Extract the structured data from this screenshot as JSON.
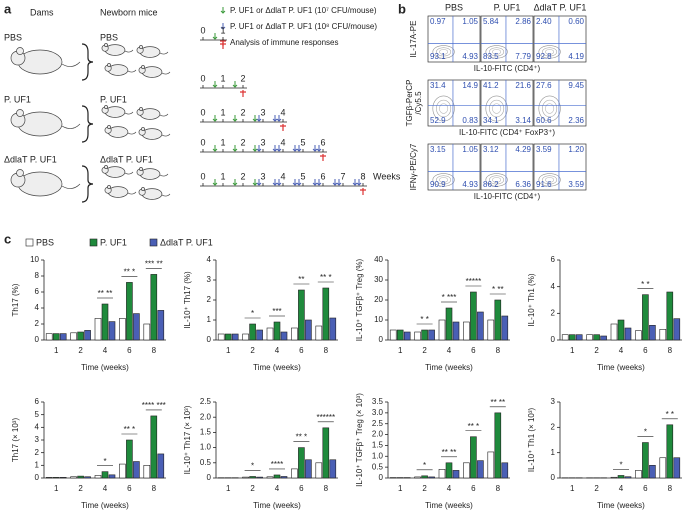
{
  "panel_a": {
    "letter": "a",
    "dams_heading": "Dams",
    "mice_heading": "Newborn mice",
    "groups": [
      "PBS",
      "P. UF1",
      "ΔdlaT P. UF1"
    ],
    "offspring": [
      "PBS",
      "P. UF1",
      "ΔdlaT P. UF1"
    ],
    "legend": [
      "P. UF1 or ΔdlaT P. UF1 (10⁷ CFU/mouse)",
      "P. UF1 or ΔdlaT P. UF1 (10⁸ CFU/mouse)",
      "Analysis of immune responses"
    ],
    "timelines": [
      [
        "0",
        "1"
      ],
      [
        "0",
        "1",
        "2"
      ],
      [
        "0",
        "1",
        "2",
        "3",
        "4"
      ],
      [
        "0",
        "1",
        "2",
        "3",
        "4",
        "5",
        "6"
      ],
      [
        "0",
        "1",
        "2",
        "3",
        "4",
        "5",
        "6",
        "7",
        "8"
      ]
    ],
    "unit": "Weeks"
  },
  "panel_b": {
    "letter": "b",
    "columns": [
      "PBS",
      "P. UF1",
      "ΔdlaT P. UF1"
    ],
    "rows": [
      {
        "y_label": [
          "IL-17A-PE"
        ],
        "x_label": "IL-10-FITC (CD4⁺)",
        "quadrants": [
          [
            "0.97",
            "1.05",
            "93.1",
            "4.93"
          ],
          [
            "5.84",
            "2.86",
            "83.5",
            "7.79"
          ],
          [
            "2.40",
            "0.60",
            "92.8",
            "4.19"
          ]
        ]
      },
      {
        "y_label": [
          "TGFβ-PerCP",
          "/Cy5.5"
        ],
        "x_label": "IL-10-FITC (CD4⁺ FoxP3⁺)",
        "quadrants": [
          [
            "31.4",
            "14.9",
            "52.9",
            "0.83"
          ],
          [
            "41.2",
            "21.6",
            "34.1",
            "3.14"
          ],
          [
            "27.6",
            "9.45",
            "60.6",
            "2.36"
          ]
        ]
      },
      {
        "y_label": [
          "IFNγ-PE/Cy7"
        ],
        "x_label": "IL-10-FITC (CD4⁺)",
        "quadrants": [
          [
            "3.15",
            "1.05",
            "90.9",
            "4.93"
          ],
          [
            "3.12",
            "4.29",
            "86.2",
            "6.36"
          ],
          [
            "3.59",
            "1.20",
            "91.6",
            "3.59"
          ]
        ]
      }
    ]
  },
  "panel_c": {
    "letter": "c"
  },
  "chart_data": [
    {
      "type": "bar",
      "y_label": "Th17 (%)",
      "x_label": "Time (weeks)",
      "categories": [
        "1",
        "2",
        "4",
        "6",
        "8"
      ],
      "ylim": [
        0,
        10
      ],
      "yticks": [
        0,
        2,
        4,
        6,
        8,
        10
      ],
      "series": [
        {
          "name": "PBS",
          "color": "#ffffff",
          "values": [
            0.8,
            0.9,
            2.7,
            2.7,
            2.0
          ]
        },
        {
          "name": "P. UF1",
          "color": "#1f8a3c",
          "values": [
            0.8,
            1.0,
            4.5,
            7.2,
            8.2
          ]
        },
        {
          "name": "ΔdlaT P. UF1",
          "color": "#4a5fb5",
          "values": [
            0.8,
            1.2,
            2.3,
            3.3,
            3.7
          ]
        }
      ],
      "stars": [
        null,
        null,
        "** **",
        "** *",
        "*** **"
      ]
    },
    {
      "type": "bar",
      "y_label": "IL-10⁺ Th17 (%)",
      "x_label": "Time (weeks)",
      "categories": [
        "1",
        "2",
        "4",
        "6",
        "8"
      ],
      "ylim": [
        0,
        4
      ],
      "yticks": [
        0,
        1,
        2,
        3,
        4
      ],
      "series": [
        {
          "color": "#ffffff",
          "values": [
            0.3,
            0.3,
            0.6,
            0.6,
            0.7
          ]
        },
        {
          "color": "#1f8a3c",
          "values": [
            0.3,
            0.8,
            0.9,
            2.5,
            2.6
          ]
        },
        {
          "color": "#4a5fb5",
          "values": [
            0.3,
            0.5,
            0.4,
            1.0,
            1.1
          ]
        }
      ],
      "stars": [
        null,
        "*",
        "***",
        "**",
        "** *"
      ]
    },
    {
      "type": "bar",
      "y_label": "IL-10⁺ TGFβ⁺ Treg (%)",
      "x_label": "Time (weeks)",
      "categories": [
        "1",
        "2",
        "4",
        "6",
        "8"
      ],
      "ylim": [
        0,
        40
      ],
      "yticks": [
        0,
        10,
        20,
        30,
        40
      ],
      "series": [
        {
          "color": "#ffffff",
          "values": [
            5,
            4,
            10,
            9,
            10
          ]
        },
        {
          "color": "#1f8a3c",
          "values": [
            5,
            5,
            16,
            24,
            20
          ]
        },
        {
          "color": "#4a5fb5",
          "values": [
            4,
            5,
            9,
            14,
            12
          ]
        }
      ],
      "stars": [
        null,
        "* *",
        "* ***",
        "*****",
        "* **"
      ]
    },
    {
      "type": "bar",
      "y_label": "IL-10⁺ Th1 (%)",
      "x_label": "Time (weeks)",
      "categories": [
        "1",
        "2",
        "4",
        "6",
        "8"
      ],
      "ylim": [
        0,
        6
      ],
      "yticks": [
        0,
        2,
        4,
        6
      ],
      "series": [
        {
          "color": "#ffffff",
          "values": [
            0.4,
            0.4,
            1.2,
            0.7,
            0.8
          ]
        },
        {
          "color": "#1f8a3c",
          "values": [
            0.4,
            0.4,
            1.5,
            3.4,
            3.6
          ]
        },
        {
          "color": "#4a5fb5",
          "values": [
            0.4,
            0.3,
            0.9,
            1.1,
            1.6
          ]
        }
      ],
      "stars": [
        null,
        null,
        null,
        "* *",
        null
      ]
    },
    {
      "type": "bar",
      "y_label": "Th17 (× 10³)",
      "x_label": "Time (weeks)",
      "categories": [
        "1",
        "2",
        "4",
        "6",
        "8"
      ],
      "ylim": [
        0,
        6
      ],
      "yticks": [
        0,
        1,
        2,
        3,
        4,
        5,
        6
      ],
      "series": [
        {
          "color": "#ffffff",
          "values": [
            0.05,
            0.1,
            0.2,
            1.1,
            1.0
          ]
        },
        {
          "color": "#1f8a3c",
          "values": [
            0.05,
            0.15,
            0.5,
            3.0,
            4.9
          ]
        },
        {
          "color": "#4a5fb5",
          "values": [
            0.05,
            0.1,
            0.25,
            1.3,
            1.9
          ]
        }
      ],
      "stars": [
        null,
        null,
        "*",
        "** *",
        "**** ***"
      ]
    },
    {
      "type": "bar",
      "y_label": "IL-10⁺ Th17 (× 10³)",
      "x_label": "Time (weeks)",
      "categories": [
        "1",
        "2",
        "4",
        "6",
        "8"
      ],
      "ylim": [
        0,
        2.5
      ],
      "yticks": [
        0,
        0.5,
        {
          "value": 1,
          "label": "1.0"
        },
        1.5,
        {
          "value": 2,
          "label": "2.0"
        },
        2.5
      ],
      "series": [
        {
          "color": "#ffffff",
          "values": [
            0.01,
            0.03,
            0.04,
            0.3,
            0.5
          ]
        },
        {
          "color": "#1f8a3c",
          "values": [
            0.01,
            0.05,
            0.1,
            1.0,
            1.65
          ]
        },
        {
          "color": "#4a5fb5",
          "values": [
            0.01,
            0.03,
            0.05,
            0.6,
            0.6
          ]
        }
      ],
      "stars": [
        null,
        "*",
        "****",
        "** *",
        "******"
      ]
    },
    {
      "type": "bar",
      "y_label": "IL-10⁺ TGFβ⁺ Treg (× 10³)",
      "x_label": "Time (weeks)",
      "categories": [
        "1",
        "2",
        "4",
        "6",
        "8"
      ],
      "ylim": [
        0,
        3.5
      ],
      "yticks": [
        0,
        0.5,
        {
          "value": 1,
          "label": "1.0"
        },
        1.5,
        {
          "value": 2,
          "label": "2.0"
        },
        2.5,
        {
          "value": 3,
          "label": "3.0"
        },
        3.5
      ],
      "series": [
        {
          "color": "#ffffff",
          "values": [
            0.02,
            0.05,
            0.4,
            0.7,
            1.2
          ]
        },
        {
          "color": "#1f8a3c",
          "values": [
            0.02,
            0.1,
            0.7,
            1.9,
            3.0
          ]
        },
        {
          "color": "#4a5fb5",
          "values": [
            0.02,
            0.05,
            0.35,
            0.8,
            0.7
          ]
        }
      ],
      "stars": [
        null,
        "*",
        "** **",
        "** *",
        "** **"
      ]
    },
    {
      "type": "bar",
      "y_label": "IL-10⁺ Th1 (× 10³)",
      "x_label": "Time (weeks)",
      "categories": [
        "1",
        "2",
        "4",
        "6",
        "8"
      ],
      "ylim": [
        0,
        3
      ],
      "yticks": [
        0,
        1,
        2,
        3
      ],
      "series": [
        {
          "color": "#ffffff",
          "values": [
            0.01,
            0.01,
            0.03,
            0.3,
            0.8
          ]
        },
        {
          "color": "#1f8a3c",
          "values": [
            0.01,
            0.01,
            0.1,
            1.4,
            2.1
          ]
        },
        {
          "color": "#4a5fb5",
          "values": [
            0.01,
            0.01,
            0.05,
            0.5,
            0.8
          ]
        }
      ],
      "stars": [
        null,
        null,
        "*",
        "*",
        "* *"
      ]
    }
  ]
}
